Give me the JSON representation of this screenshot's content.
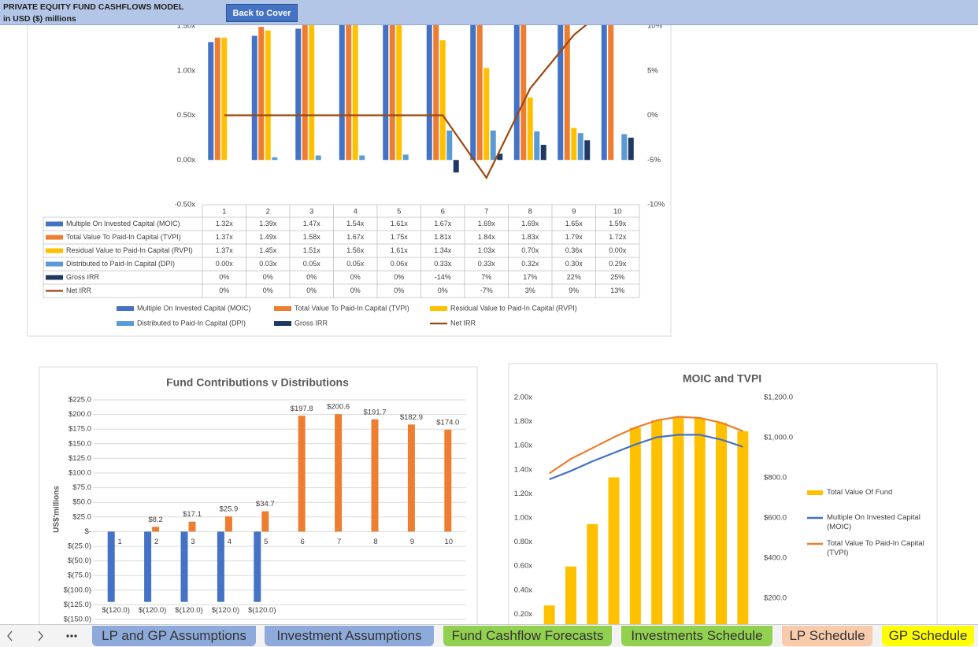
{
  "header": {
    "title": "PRIVATE EQUITY FUND CASHFLOWS MODEL",
    "subtitle": "in USD ($) millions",
    "button": "Back to Cover"
  },
  "tabs": [
    {
      "label": "LP and GP Assumptions",
      "color": "#8eaadb"
    },
    {
      "label": "Investment Assumptions",
      "color": "#8eaadb"
    },
    {
      "label": "Fund Cashflow Forecasts",
      "color": "#92d050"
    },
    {
      "label": "Investments Schedule",
      "color": "#92d050"
    },
    {
      "label": "LP Schedule",
      "color": "#f8cbad"
    },
    {
      "label": "GP Schedule",
      "color": "#ffff00"
    }
  ],
  "chart_data": [
    {
      "type": "bar",
      "categories": [
        1,
        2,
        3,
        4,
        5,
        6,
        7,
        8,
        9,
        10
      ],
      "ylim": [
        -0.5,
        1.5
      ],
      "yticks": [
        {
          "value": -0.5,
          "label": "-0.50x"
        },
        {
          "value": 0,
          "label": "0.00x"
        },
        {
          "value": 0.5,
          "label": "0.50x"
        },
        {
          "value": 1,
          "label": "1.00x"
        },
        {
          "value": 1.5,
          "label": "1.50x"
        }
      ],
      "y2lim": [
        -10,
        10
      ],
      "y2ticks": [
        {
          "value": -10,
          "label": "-10%"
        },
        {
          "value": -5,
          "label": "-5%"
        },
        {
          "value": 0,
          "label": "0%"
        },
        {
          "value": 5,
          "label": "5%"
        },
        {
          "value": 10,
          "label": "10%"
        }
      ],
      "grid": false,
      "legend": "bottom",
      "data_table": true,
      "series": [
        {
          "name": "Multiple On Invested Capital (MOIC)",
          "type": "bar",
          "color": "#4472c4",
          "values": [
            1.32,
            1.39,
            1.47,
            1.54,
            1.61,
            1.67,
            1.69,
            1.69,
            1.65,
            1.59
          ],
          "value_labels": [
            "1.32x",
            "1.39x",
            "1.47x",
            "1.54x",
            "1.61x",
            "1.67x",
            "1.69x",
            "1.69x",
            "1.65x",
            "1.59x"
          ]
        },
        {
          "name": "Total Value To Paid-In Capital (TVPI)",
          "type": "bar",
          "color": "#ed7d31",
          "values": [
            1.37,
            1.49,
            1.58,
            1.67,
            1.75,
            1.81,
            1.84,
            1.83,
            1.79,
            1.72
          ],
          "value_labels": [
            "1.37x",
            "1.49x",
            "1.58x",
            "1.67x",
            "1.75x",
            "1.81x",
            "1.84x",
            "1.83x",
            "1.79x",
            "1.72x"
          ]
        },
        {
          "name": "Residual Value to Paid-In Capital (RVPI)",
          "type": "bar",
          "color": "#ffc000",
          "values": [
            1.37,
            1.45,
            1.51,
            1.56,
            1.61,
            1.34,
            1.03,
            0.7,
            0.36,
            0.0
          ],
          "value_labels": [
            "1.37x",
            "1.45x",
            "1.51x",
            "1.56x",
            "1.61x",
            "1.34x",
            "1.03x",
            "0.70x",
            "0.36x",
            "0.00x"
          ]
        },
        {
          "name": "Distributed to Paid-In Capital (DPI)",
          "type": "bar",
          "color": "#5b9bd5",
          "values": [
            0.0,
            0.03,
            0.05,
            0.05,
            0.06,
            0.33,
            0.33,
            0.32,
            0.3,
            0.29
          ],
          "value_labels": [
            "0.00x",
            "0.03x",
            "0.05x",
            "0.05x",
            "0.06x",
            "0.33x",
            "0.33x",
            "0.32x",
            "0.30x",
            "0.29x"
          ]
        },
        {
          "name": "Gross IRR",
          "type": "bar",
          "color": "#203864",
          "values": [
            0,
            0,
            0,
            0,
            0,
            -0.14,
            0.07,
            0.17,
            0.22,
            0.25
          ],
          "value_labels": [
            "0%",
            "0%",
            "0%",
            "0%",
            "0%",
            "-14%",
            "7%",
            "17%",
            "22%",
            "25%"
          ]
        },
        {
          "name": "Net IRR",
          "type": "line",
          "axis": "y2",
          "color": "#9e480e",
          "values": [
            0,
            0,
            0,
            0,
            0,
            0,
            -7,
            3,
            9,
            13
          ],
          "value_labels": [
            "0%",
            "0%",
            "0%",
            "0%",
            "0%",
            "0%",
            "-7%",
            "3%",
            "9%",
            "13%"
          ]
        }
      ]
    },
    {
      "type": "bar",
      "title": "Fund Contributions v Distributions",
      "ylabel": "US$'millions",
      "categories": [
        1,
        2,
        3,
        4,
        5,
        6,
        7,
        8,
        9,
        10
      ],
      "ylim": [
        -150,
        225
      ],
      "yticks": [
        {
          "value": 225,
          "label": "$225.0"
        },
        {
          "value": 200,
          "label": "$200.0"
        },
        {
          "value": 175,
          "label": "$175.0"
        },
        {
          "value": 150,
          "label": "$150.0"
        },
        {
          "value": 125,
          "label": "$125.0"
        },
        {
          "value": 100,
          "label": "$100.0"
        },
        {
          "value": 75,
          "label": "$75.0"
        },
        {
          "value": 50,
          "label": "$50.0"
        },
        {
          "value": 25,
          "label": "$25.0"
        },
        {
          "value": 0,
          "label": "$-"
        },
        {
          "value": -25,
          "label": "$(25.0)"
        },
        {
          "value": -50,
          "label": "$(50.0)"
        },
        {
          "value": -75,
          "label": "$(75.0)"
        },
        {
          "value": -100,
          "label": "$(100.0)"
        },
        {
          "value": -125,
          "label": "$(125.0)"
        },
        {
          "value": -150,
          "label": "$(150.0)"
        }
      ],
      "grid": true,
      "series": [
        {
          "type": "bar",
          "color": "#4472c4",
          "values": [
            -120,
            -120,
            -120,
            -120,
            -120,
            null,
            null,
            null,
            null,
            null
          ],
          "value_labels": [
            "$(120.0)",
            "$(120.0)",
            "$(120.0)",
            "$(120.0)",
            "$(120.0)",
            null,
            null,
            null,
            null,
            null
          ]
        },
        {
          "type": "bar",
          "color": "#ed7d31",
          "values": [
            null,
            8.2,
            17.1,
            25.9,
            34.7,
            197.8,
            200.6,
            191.7,
            182.9,
            174.0
          ],
          "value_labels": [
            null,
            "$8.2",
            "$17.1",
            "$25.9",
            "$34.7",
            "$197.8",
            "$200.6",
            "$191.7",
            "$182.9",
            "$174.0"
          ]
        }
      ]
    },
    {
      "type": "bar",
      "title": "MOIC and TVPI",
      "ylim": [
        0,
        2
      ],
      "yticks": [
        {
          "value": 0.2,
          "label": "0.20x"
        },
        {
          "value": 0.4,
          "label": "0.40x"
        },
        {
          "value": 0.6,
          "label": "0.60x"
        },
        {
          "value": 0.8,
          "label": "0.80x"
        },
        {
          "value": 1.0,
          "label": "1.00x"
        },
        {
          "value": 1.2,
          "label": "1.20x"
        },
        {
          "value": 1.4,
          "label": "1.40x"
        },
        {
          "value": 1.6,
          "label": "1.60x"
        },
        {
          "value": 1.8,
          "label": "1.80x"
        },
        {
          "value": 2.0,
          "label": "2.00x"
        }
      ],
      "y2lim": [
        0,
        1200
      ],
      "y2ticks": [
        {
          "value": 200,
          "label": "$200.0"
        },
        {
          "value": 400,
          "label": "$400.0"
        },
        {
          "value": 600,
          "label": "$600.0"
        },
        {
          "value": 800,
          "label": "$800.0"
        },
        {
          "value": 1000,
          "label": "$1,000.0"
        },
        {
          "value": 1200,
          "label": "$1,200.0"
        }
      ],
      "grid": false,
      "legend": "right",
      "series": [
        {
          "name": "Total Value Of Fund",
          "type": "bar",
          "axis": "y2",
          "color": "#ffc000",
          "values": [
            164,
            358,
            569,
            802,
            1050,
            1086,
            1104,
            1098,
            1074,
            1032
          ]
        },
        {
          "name": "Multiple On Invested Capital (MOIC)",
          "type": "line",
          "color": "#4472c4",
          "values": [
            1.32,
            1.39,
            1.47,
            1.54,
            1.61,
            1.67,
            1.69,
            1.69,
            1.65,
            1.59
          ]
        },
        {
          "name": "Total Value To Paid-In Capital (TVPI)",
          "type": "line",
          "color": "#ed7d31",
          "values": [
            1.37,
            1.49,
            1.58,
            1.67,
            1.75,
            1.81,
            1.84,
            1.83,
            1.79,
            1.72
          ]
        }
      ]
    }
  ]
}
